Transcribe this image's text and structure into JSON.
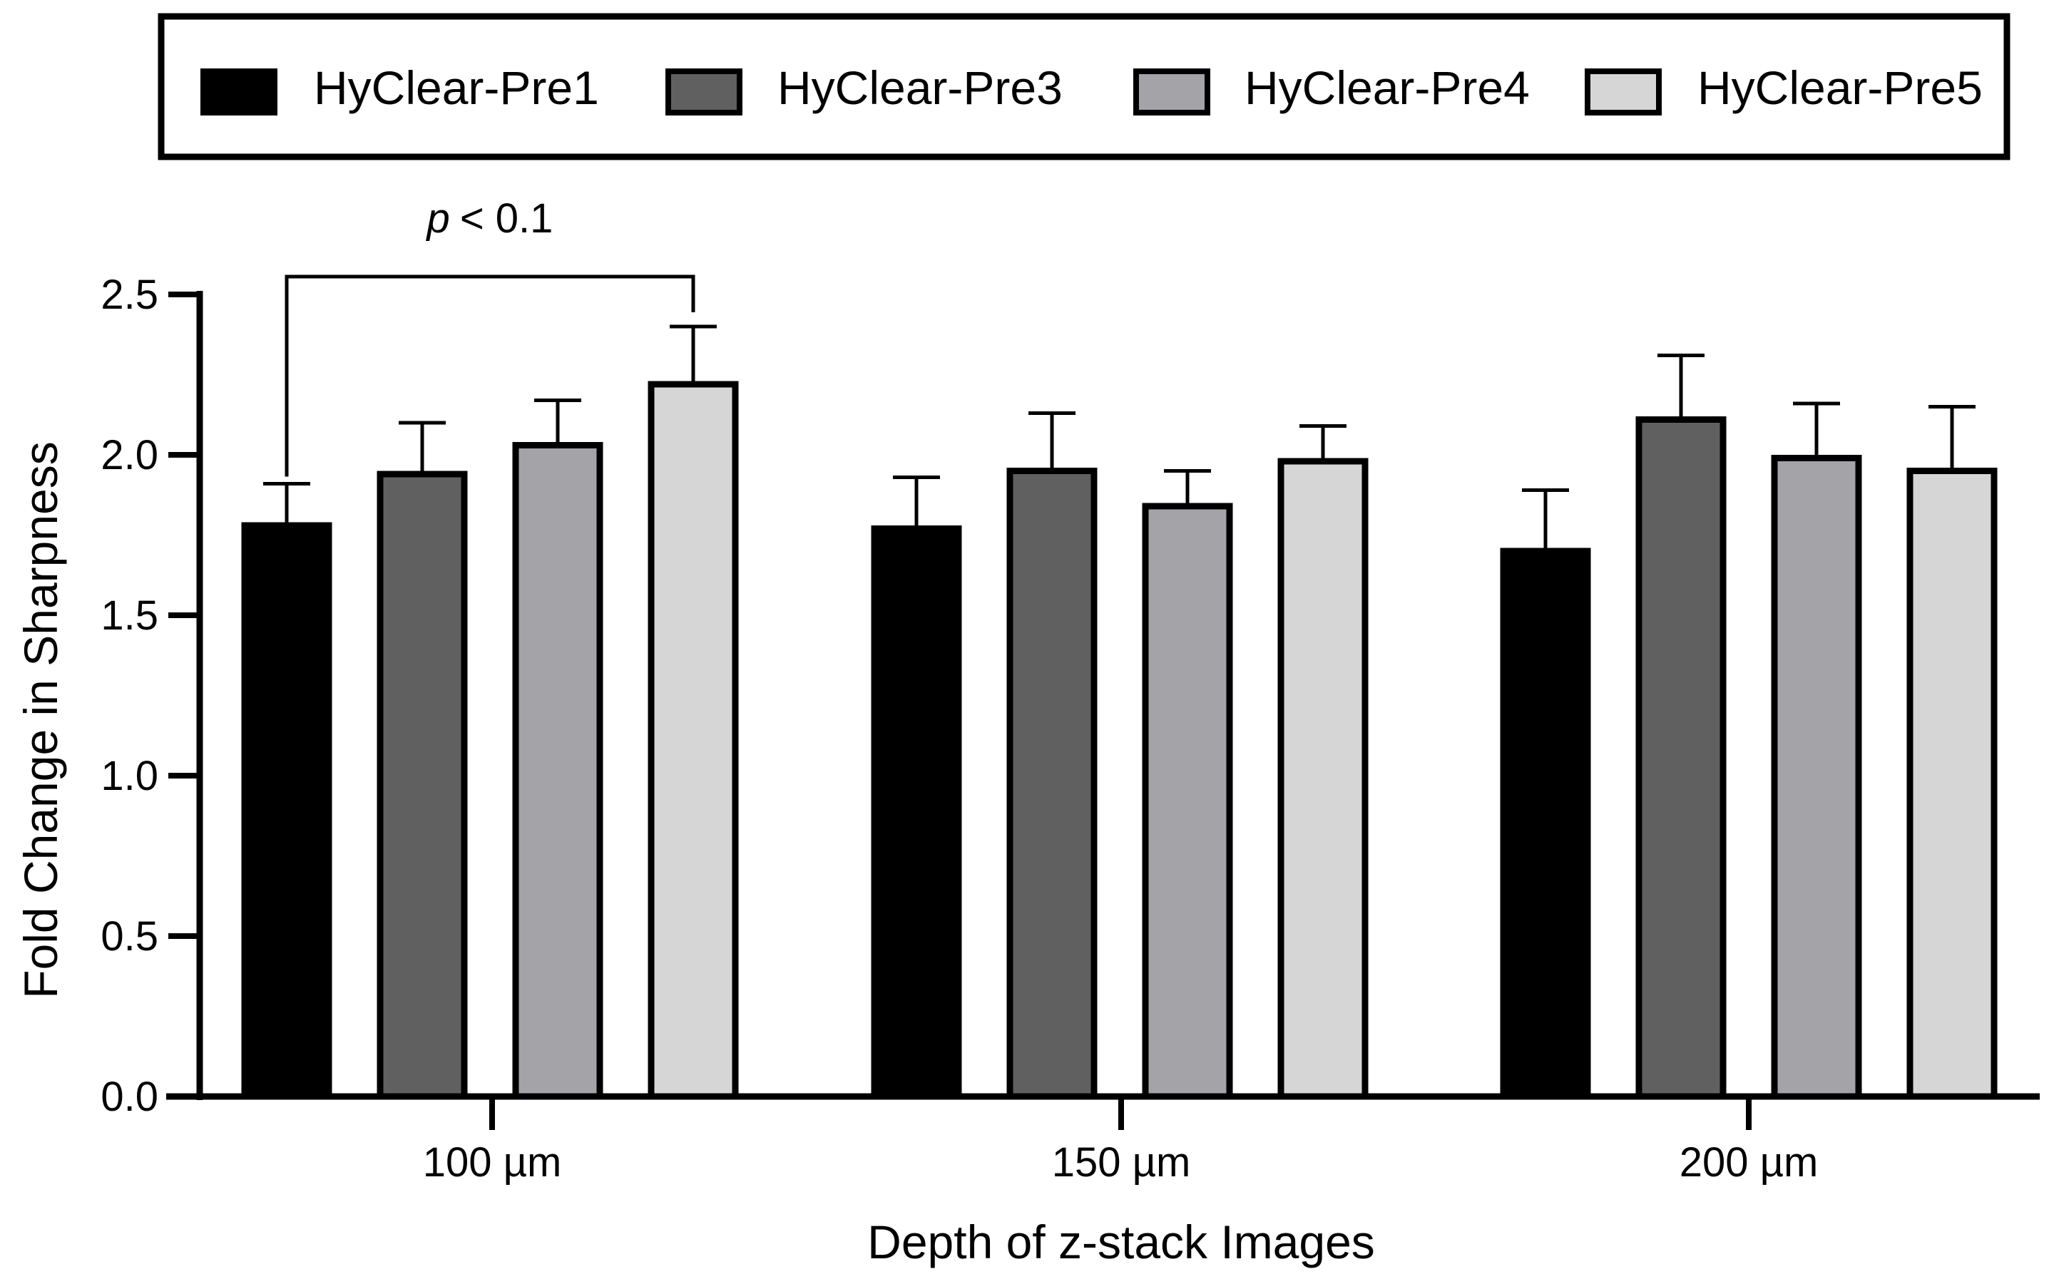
{
  "chart_data": {
    "type": "bar",
    "title": "",
    "xlabel": "Depth of z-stack Images",
    "ylabel": "Fold Change in Sharpness",
    "categories": [
      "100 µm",
      "150 µm",
      "200 µm"
    ],
    "ylim": [
      0,
      2.5
    ],
    "yticks": [
      "0.0",
      "0.5",
      "1.0",
      "1.5",
      "2.0",
      "2.5"
    ],
    "series": [
      {
        "name": "HyClear-Pre1",
        "color": "#000000",
        "values": [
          1.78,
          1.77,
          1.7
        ],
        "errors": [
          0.13,
          0.16,
          0.19
        ]
      },
      {
        "name": "HyClear-Pre3",
        "color": "#606060",
        "values": [
          1.94,
          1.95,
          2.11
        ],
        "errors": [
          0.16,
          0.18,
          0.2
        ]
      },
      {
        "name": "HyClear-Pre4",
        "color": "#a3a3a8",
        "values": [
          2.03,
          1.84,
          1.99
        ],
        "errors": [
          0.14,
          0.11,
          0.17
        ]
      },
      {
        "name": "HyClear-Pre5",
        "color": "#d6d6d6",
        "values": [
          2.22,
          1.98,
          1.95
        ],
        "errors": [
          0.18,
          0.11,
          0.2
        ]
      }
    ],
    "legend_position": "top",
    "grid": false,
    "annotations": [
      {
        "text_italic": "p",
        "text": "< 0.1",
        "type": "significance-bracket",
        "category": "100 µm",
        "from_series": "HyClear-Pre1",
        "to_series": "HyClear-Pre5"
      }
    ]
  }
}
